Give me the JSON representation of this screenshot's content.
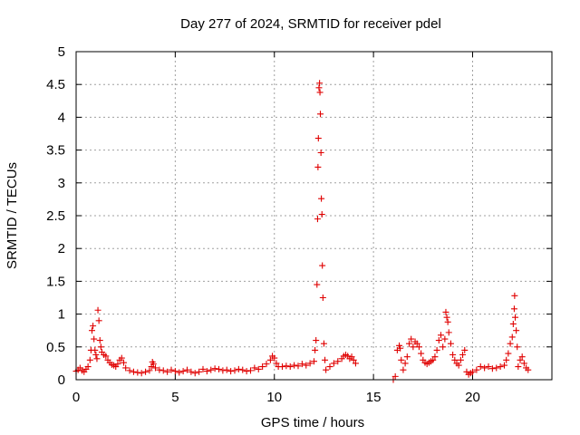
{
  "chart_data": {
    "type": "scatter",
    "title": "Day 277 of 2024, SRMTID for receiver pdel",
    "xlabel": "GPS time / hours",
    "ylabel": "SRMTID / TECUs",
    "xlim": [
      0,
      24
    ],
    "ylim": [
      0,
      5
    ],
    "x_ticks": [
      0,
      5,
      10,
      15,
      20
    ],
    "x_tick_labels": [
      "0",
      "5",
      "10",
      "15",
      "20"
    ],
    "y_ticks": [
      0,
      0.5,
      1,
      1.5,
      2,
      2.5,
      3,
      3.5,
      4,
      4.5,
      5
    ],
    "y_tick_labels": [
      "0",
      "0.5",
      "1",
      "1.5",
      "2",
      "2.5",
      "3",
      "3.5",
      "4",
      "4.5",
      "5"
    ],
    "grid": true,
    "marker": "+",
    "color": "#e00000",
    "series": [
      {
        "name": "SRMTID",
        "points": [
          [
            0.0,
            0.13
          ],
          [
            0.1,
            0.15
          ],
          [
            0.2,
            0.18
          ],
          [
            0.3,
            0.14
          ],
          [
            0.4,
            0.12
          ],
          [
            0.5,
            0.16
          ],
          [
            0.6,
            0.2
          ],
          [
            0.7,
            0.3
          ],
          [
            0.75,
            0.45
          ],
          [
            0.8,
            0.75
          ],
          [
            0.85,
            0.82
          ],
          [
            0.9,
            0.62
          ],
          [
            0.95,
            0.45
          ],
          [
            1.0,
            0.38
          ],
          [
            1.05,
            0.32
          ],
          [
            1.1,
            1.06
          ],
          [
            1.15,
            0.9
          ],
          [
            1.2,
            0.6
          ],
          [
            1.25,
            0.5
          ],
          [
            1.3,
            0.42
          ],
          [
            1.4,
            0.38
          ],
          [
            1.5,
            0.36
          ],
          [
            1.6,
            0.3
          ],
          [
            1.7,
            0.26
          ],
          [
            1.8,
            0.23
          ],
          [
            1.9,
            0.22
          ],
          [
            2.0,
            0.2
          ],
          [
            2.1,
            0.24
          ],
          [
            2.2,
            0.3
          ],
          [
            2.3,
            0.33
          ],
          [
            2.4,
            0.26
          ],
          [
            2.5,
            0.18
          ],
          [
            2.7,
            0.14
          ],
          [
            2.9,
            0.12
          ],
          [
            3.1,
            0.11
          ],
          [
            3.3,
            0.1
          ],
          [
            3.5,
            0.12
          ],
          [
            3.7,
            0.14
          ],
          [
            3.8,
            0.2
          ],
          [
            3.85,
            0.27
          ],
          [
            3.9,
            0.24
          ],
          [
            4.0,
            0.18
          ],
          [
            4.2,
            0.15
          ],
          [
            4.4,
            0.14
          ],
          [
            4.6,
            0.12
          ],
          [
            4.8,
            0.15
          ],
          [
            5.0,
            0.13
          ],
          [
            5.2,
            0.11
          ],
          [
            5.4,
            0.13
          ],
          [
            5.6,
            0.15
          ],
          [
            5.8,
            0.12
          ],
          [
            6.0,
            0.1
          ],
          [
            6.2,
            0.12
          ],
          [
            6.4,
            0.16
          ],
          [
            6.6,
            0.13
          ],
          [
            6.8,
            0.15
          ],
          [
            7.0,
            0.17
          ],
          [
            7.2,
            0.16
          ],
          [
            7.4,
            0.14
          ],
          [
            7.6,
            0.15
          ],
          [
            7.8,
            0.13
          ],
          [
            8.0,
            0.14
          ],
          [
            8.2,
            0.16
          ],
          [
            8.4,
            0.15
          ],
          [
            8.6,
            0.13
          ],
          [
            8.8,
            0.14
          ],
          [
            9.0,
            0.18
          ],
          [
            9.2,
            0.16
          ],
          [
            9.4,
            0.2
          ],
          [
            9.6,
            0.24
          ],
          [
            9.8,
            0.3
          ],
          [
            9.9,
            0.36
          ],
          [
            10.0,
            0.33
          ],
          [
            10.1,
            0.25
          ],
          [
            10.2,
            0.2
          ],
          [
            10.4,
            0.2
          ],
          [
            10.6,
            0.21
          ],
          [
            10.8,
            0.2
          ],
          [
            11.0,
            0.22
          ],
          [
            11.2,
            0.21
          ],
          [
            11.4,
            0.24
          ],
          [
            11.6,
            0.22
          ],
          [
            11.8,
            0.25
          ],
          [
            12.0,
            0.28
          ],
          [
            12.05,
            0.45
          ],
          [
            12.1,
            0.6
          ],
          [
            12.15,
            1.45
          ],
          [
            12.18,
            2.45
          ],
          [
            12.2,
            3.24
          ],
          [
            12.22,
            3.68
          ],
          [
            12.25,
            4.45
          ],
          [
            12.28,
            4.52
          ],
          [
            12.3,
            4.38
          ],
          [
            12.32,
            4.05
          ],
          [
            12.35,
            3.46
          ],
          [
            12.37,
            2.76
          ],
          [
            12.4,
            2.52
          ],
          [
            12.42,
            1.74
          ],
          [
            12.45,
            1.25
          ],
          [
            12.5,
            0.55
          ],
          [
            12.55,
            0.3
          ],
          [
            12.6,
            0.15
          ],
          [
            12.8,
            0.2
          ],
          [
            13.0,
            0.25
          ],
          [
            13.2,
            0.28
          ],
          [
            13.4,
            0.32
          ],
          [
            13.5,
            0.36
          ],
          [
            13.6,
            0.38
          ],
          [
            13.7,
            0.36
          ],
          [
            13.8,
            0.32
          ],
          [
            13.9,
            0.35
          ],
          [
            14.0,
            0.3
          ],
          [
            14.1,
            0.25
          ],
          [
            16.0,
            0.0
          ],
          [
            16.1,
            0.05
          ],
          [
            16.2,
            0.45
          ],
          [
            16.3,
            0.52
          ],
          [
            16.35,
            0.48
          ],
          [
            16.4,
            0.3
          ],
          [
            16.5,
            0.15
          ],
          [
            16.6,
            0.25
          ],
          [
            16.7,
            0.35
          ],
          [
            16.8,
            0.55
          ],
          [
            16.9,
            0.62
          ],
          [
            17.0,
            0.5
          ],
          [
            17.1,
            0.58
          ],
          [
            17.2,
            0.55
          ],
          [
            17.3,
            0.5
          ],
          [
            17.4,
            0.4
          ],
          [
            17.5,
            0.3
          ],
          [
            17.6,
            0.26
          ],
          [
            17.7,
            0.24
          ],
          [
            17.8,
            0.26
          ],
          [
            17.9,
            0.28
          ],
          [
            18.0,
            0.3
          ],
          [
            18.1,
            0.35
          ],
          [
            18.2,
            0.45
          ],
          [
            18.3,
            0.6
          ],
          [
            18.4,
            0.68
          ],
          [
            18.5,
            0.5
          ],
          [
            18.6,
            0.62
          ],
          [
            18.65,
            1.03
          ],
          [
            18.7,
            0.95
          ],
          [
            18.75,
            0.88
          ],
          [
            18.8,
            0.72
          ],
          [
            18.9,
            0.55
          ],
          [
            19.0,
            0.38
          ],
          [
            19.1,
            0.3
          ],
          [
            19.2,
            0.25
          ],
          [
            19.3,
            0.22
          ],
          [
            19.4,
            0.3
          ],
          [
            19.5,
            0.38
          ],
          [
            19.6,
            0.45
          ],
          [
            19.7,
            0.12
          ],
          [
            19.8,
            0.08
          ],
          [
            19.9,
            0.1
          ],
          [
            20.0,
            0.12
          ],
          [
            20.2,
            0.15
          ],
          [
            20.4,
            0.2
          ],
          [
            20.6,
            0.18
          ],
          [
            20.8,
            0.2
          ],
          [
            21.0,
            0.17
          ],
          [
            21.2,
            0.18
          ],
          [
            21.4,
            0.2
          ],
          [
            21.6,
            0.22
          ],
          [
            21.7,
            0.3
          ],
          [
            21.8,
            0.4
          ],
          [
            21.9,
            0.55
          ],
          [
            22.0,
            0.65
          ],
          [
            22.05,
            0.85
          ],
          [
            22.1,
            1.08
          ],
          [
            22.12,
            1.28
          ],
          [
            22.15,
            0.95
          ],
          [
            22.2,
            0.75
          ],
          [
            22.25,
            0.5
          ],
          [
            22.3,
            0.2
          ],
          [
            22.4,
            0.3
          ],
          [
            22.5,
            0.35
          ],
          [
            22.6,
            0.25
          ],
          [
            22.7,
            0.18
          ],
          [
            22.8,
            0.15
          ]
        ]
      }
    ]
  }
}
